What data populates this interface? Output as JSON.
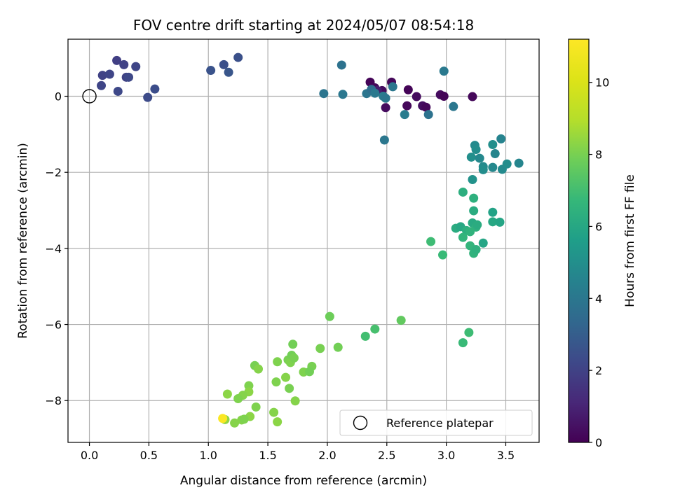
{
  "chart_data": {
    "type": "scatter",
    "title": "FOV centre drift starting at 2024/05/07 08:54:18",
    "xlabel": "Angular distance from reference (arcmin)",
    "ylabel": "Rotation from reference (arcmin)",
    "xlim": [
      -0.18,
      3.78
    ],
    "ylim": [
      -9.1,
      1.5
    ],
    "xticks": [
      0.0,
      0.5,
      1.0,
      1.5,
      2.0,
      2.5,
      3.0,
      3.5
    ],
    "xtick_labels": [
      "0.0",
      "0.5",
      "1.0",
      "1.5",
      "2.0",
      "2.5",
      "3.0",
      "3.5"
    ],
    "yticks": [
      0,
      -2,
      -4,
      -6,
      -8
    ],
    "ytick_labels": [
      "0",
      "−2",
      "−4",
      "−6",
      "−8"
    ],
    "grid": true,
    "colormap": "viridis",
    "colorbar": {
      "label": "Hours from first FF file",
      "range": [
        0,
        11.2
      ],
      "ticks": [
        0,
        2,
        4,
        6,
        8,
        10
      ],
      "tick_labels": [
        "0",
        "2",
        "4",
        "6",
        "8",
        "10"
      ]
    },
    "reference": {
      "x": 0.0,
      "y": 0.0,
      "label": "Reference platepar"
    },
    "legend_position": "lower right",
    "points": [
      {
        "x": 2.36,
        "y": 0.37,
        "h": 0.1
      },
      {
        "x": 2.4,
        "y": 0.22,
        "h": 0.2
      },
      {
        "x": 2.46,
        "y": 0.15,
        "h": 0.3
      },
      {
        "x": 2.54,
        "y": 0.37,
        "h": 0.2
      },
      {
        "x": 2.49,
        "y": -0.3,
        "h": 0.3
      },
      {
        "x": 2.67,
        "y": -0.25,
        "h": 0.2
      },
      {
        "x": 2.68,
        "y": 0.17,
        "h": 0.1
      },
      {
        "x": 2.75,
        "y": -0.01,
        "h": 0.3
      },
      {
        "x": 2.8,
        "y": -0.25,
        "h": 0.4
      },
      {
        "x": 2.83,
        "y": -0.29,
        "h": 0.2
      },
      {
        "x": 2.95,
        "y": 0.04,
        "h": 0.3
      },
      {
        "x": 2.98,
        "y": 0.0,
        "h": 0.1
      },
      {
        "x": 3.22,
        "y": -0.01,
        "h": 0.2
      },
      {
        "x": 2.42,
        "y": 0.15,
        "h": 0.8
      },
      {
        "x": 2.12,
        "y": 0.82,
        "h": 3.8
      },
      {
        "x": 1.97,
        "y": 0.07,
        "h": 3.9
      },
      {
        "x": 2.13,
        "y": 0.05,
        "h": 4.0
      },
      {
        "x": 2.33,
        "y": 0.07,
        "h": 3.9
      },
      {
        "x": 2.37,
        "y": 0.18,
        "h": 3.6
      },
      {
        "x": 2.4,
        "y": 0.08,
        "h": 4.1
      },
      {
        "x": 2.47,
        "y": 0.0,
        "h": 4.2
      },
      {
        "x": 2.49,
        "y": -0.05,
        "h": 4.0
      },
      {
        "x": 2.55,
        "y": 0.25,
        "h": 4.0
      },
      {
        "x": 2.48,
        "y": -1.15,
        "h": 4.0
      },
      {
        "x": 2.65,
        "y": -0.48,
        "h": 4.2
      },
      {
        "x": 2.85,
        "y": -0.48,
        "h": 3.8
      },
      {
        "x": 2.98,
        "y": 0.66,
        "h": 4.1
      },
      {
        "x": 3.06,
        "y": -0.27,
        "h": 4.0
      },
      {
        "x": 1.02,
        "y": 0.68,
        "h": 2.6
      },
      {
        "x": 1.13,
        "y": 0.83,
        "h": 2.5
      },
      {
        "x": 1.17,
        "y": 0.63,
        "h": 2.7
      },
      {
        "x": 1.25,
        "y": 1.02,
        "h": 2.5
      },
      {
        "x": 0.23,
        "y": 0.94,
        "h": 1.9
      },
      {
        "x": 0.29,
        "y": 0.83,
        "h": 2.0
      },
      {
        "x": 0.39,
        "y": 0.78,
        "h": 2.1
      },
      {
        "x": 0.11,
        "y": 0.55,
        "h": 2.0
      },
      {
        "x": 0.17,
        "y": 0.58,
        "h": 2.1
      },
      {
        "x": 0.31,
        "y": 0.5,
        "h": 2.0
      },
      {
        "x": 0.33,
        "y": 0.5,
        "h": 2.2
      },
      {
        "x": 0.1,
        "y": 0.28,
        "h": 2.1
      },
      {
        "x": 0.24,
        "y": 0.13,
        "h": 2.2
      },
      {
        "x": 0.49,
        "y": -0.03,
        "h": 2.3
      },
      {
        "x": 0.55,
        "y": 0.19,
        "h": 2.4
      },
      {
        "x": 3.24,
        "y": -1.29,
        "h": 4.8
      },
      {
        "x": 3.25,
        "y": -1.4,
        "h": 4.9
      },
      {
        "x": 3.21,
        "y": -1.6,
        "h": 5.0
      },
      {
        "x": 3.28,
        "y": -1.63,
        "h": 4.7
      },
      {
        "x": 3.31,
        "y": -1.85,
        "h": 4.8
      },
      {
        "x": 3.31,
        "y": -1.93,
        "h": 4.9
      },
      {
        "x": 3.39,
        "y": -1.27,
        "h": 5.0
      },
      {
        "x": 3.41,
        "y": -1.51,
        "h": 4.6
      },
      {
        "x": 3.39,
        "y": -1.87,
        "h": 4.7
      },
      {
        "x": 3.46,
        "y": -1.12,
        "h": 4.5
      },
      {
        "x": 3.47,
        "y": -1.92,
        "h": 4.8
      },
      {
        "x": 3.51,
        "y": -1.78,
        "h": 4.9
      },
      {
        "x": 3.61,
        "y": -1.76,
        "h": 4.6
      },
      {
        "x": 3.22,
        "y": -2.19,
        "h": 5.1
      },
      {
        "x": 3.14,
        "y": -2.52,
        "h": 6.3
      },
      {
        "x": 3.23,
        "y": -2.68,
        "h": 6.4
      },
      {
        "x": 3.23,
        "y": -3.01,
        "h": 6.2
      },
      {
        "x": 3.08,
        "y": -3.47,
        "h": 6.2
      },
      {
        "x": 3.12,
        "y": -3.43,
        "h": 6.0
      },
      {
        "x": 3.17,
        "y": -3.53,
        "h": 6.3
      },
      {
        "x": 3.22,
        "y": -3.33,
        "h": 6.1
      },
      {
        "x": 3.25,
        "y": -3.44,
        "h": 6.4
      },
      {
        "x": 3.26,
        "y": -3.38,
        "h": 6.2
      },
      {
        "x": 3.2,
        "y": -3.56,
        "h": 6.5
      },
      {
        "x": 3.14,
        "y": -3.71,
        "h": 6.6
      },
      {
        "x": 3.39,
        "y": -3.05,
        "h": 5.8
      },
      {
        "x": 3.39,
        "y": -3.3,
        "h": 6.0
      },
      {
        "x": 3.45,
        "y": -3.31,
        "h": 5.9
      },
      {
        "x": 3.31,
        "y": -3.86,
        "h": 5.9
      },
      {
        "x": 3.2,
        "y": -3.93,
        "h": 6.6
      },
      {
        "x": 3.23,
        "y": -4.13,
        "h": 6.5
      },
      {
        "x": 3.25,
        "y": -4.03,
        "h": 6.4
      },
      {
        "x": 2.87,
        "y": -3.82,
        "h": 6.9
      },
      {
        "x": 2.97,
        "y": -4.17,
        "h": 6.8
      },
      {
        "x": 2.32,
        "y": -6.31,
        "h": 7.0
      },
      {
        "x": 2.4,
        "y": -6.12,
        "h": 7.1
      },
      {
        "x": 3.19,
        "y": -6.21,
        "h": 6.9
      },
      {
        "x": 3.14,
        "y": -6.48,
        "h": 6.8
      },
      {
        "x": 2.62,
        "y": -5.89,
        "h": 7.6
      },
      {
        "x": 2.02,
        "y": -5.79,
        "h": 7.8
      },
      {
        "x": 1.71,
        "y": -6.52,
        "h": 7.9
      },
      {
        "x": 1.94,
        "y": -6.63,
        "h": 8.0
      },
      {
        "x": 2.09,
        "y": -6.6,
        "h": 7.9
      },
      {
        "x": 1.67,
        "y": -6.93,
        "h": 8.0
      },
      {
        "x": 1.69,
        "y": -7.0,
        "h": 8.1
      },
      {
        "x": 1.7,
        "y": -6.81,
        "h": 7.9
      },
      {
        "x": 1.72,
        "y": -6.88,
        "h": 8.0
      },
      {
        "x": 1.58,
        "y": -6.98,
        "h": 8.1
      },
      {
        "x": 1.39,
        "y": -7.08,
        "h": 8.0
      },
      {
        "x": 1.42,
        "y": -7.17,
        "h": 8.2
      },
      {
        "x": 1.87,
        "y": -7.1,
        "h": 8.0
      },
      {
        "x": 1.8,
        "y": -7.25,
        "h": 8.1
      },
      {
        "x": 1.85,
        "y": -7.24,
        "h": 7.9
      },
      {
        "x": 1.65,
        "y": -7.39,
        "h": 8.2
      },
      {
        "x": 1.57,
        "y": -7.51,
        "h": 8.1
      },
      {
        "x": 1.68,
        "y": -7.68,
        "h": 8.0
      },
      {
        "x": 1.34,
        "y": -7.61,
        "h": 8.1
      },
      {
        "x": 1.34,
        "y": -7.77,
        "h": 8.3
      },
      {
        "x": 1.29,
        "y": -7.86,
        "h": 8.2
      },
      {
        "x": 1.16,
        "y": -7.83,
        "h": 8.3
      },
      {
        "x": 1.25,
        "y": -7.95,
        "h": 8.1
      },
      {
        "x": 1.73,
        "y": -8.01,
        "h": 8.2
      },
      {
        "x": 1.4,
        "y": -8.17,
        "h": 8.1
      },
      {
        "x": 1.55,
        "y": -8.31,
        "h": 8.2
      },
      {
        "x": 1.35,
        "y": -8.42,
        "h": 8.3
      },
      {
        "x": 1.28,
        "y": -8.51,
        "h": 8.2
      },
      {
        "x": 1.3,
        "y": -8.49,
        "h": 8.1
      },
      {
        "x": 1.14,
        "y": -8.5,
        "h": 8.4
      },
      {
        "x": 1.22,
        "y": -8.59,
        "h": 8.2
      },
      {
        "x": 1.58,
        "y": -8.56,
        "h": 8.3
      },
      {
        "x": 1.12,
        "y": -8.47,
        "h": 11.1
      }
    ]
  }
}
